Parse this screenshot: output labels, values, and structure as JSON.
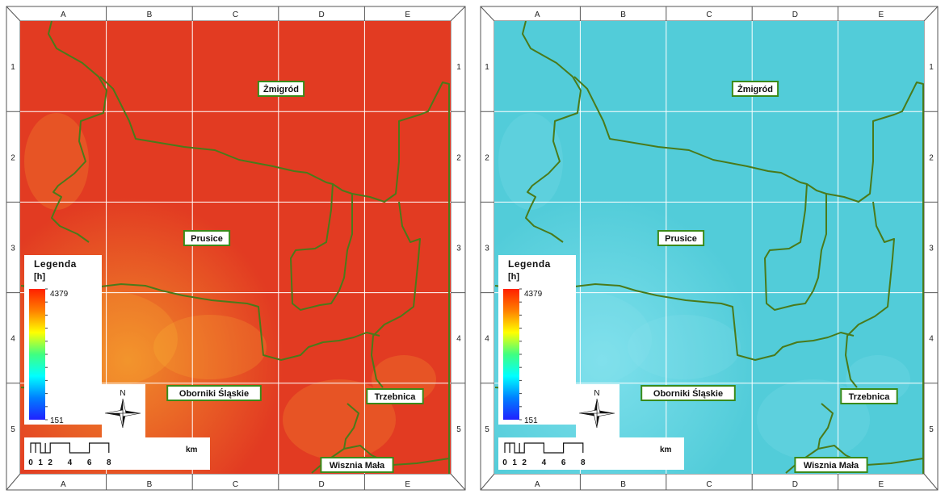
{
  "panels": [
    {
      "id": "left",
      "raster_color": "#e23b22",
      "raster_accent": "#f08a2a",
      "raster_hint": "#ffc83a",
      "col_labels": [
        "A",
        "B",
        "C",
        "D",
        "E"
      ],
      "row_labels": [
        "1",
        "2",
        "3",
        "4",
        "5"
      ],
      "places": [
        "Żmigród",
        "Prusice",
        "Oborniki Śląskie",
        "Trzebnica",
        "Wisznia Mała"
      ],
      "legend": {
        "title": "Legenda",
        "unit": "[h]",
        "max": "4379",
        "min": "151",
        "gradient": [
          "#ff2000",
          "#ff8000",
          "#ffff00",
          "#40ff80",
          "#00ffff",
          "#0080ff",
          "#2020ff"
        ]
      },
      "north_label": "N",
      "scale": {
        "ticks": [
          "0",
          "1",
          "2",
          "4",
          "6",
          "8"
        ],
        "unit": "km"
      }
    },
    {
      "id": "right",
      "raster_color": "#52ccd9",
      "raster_accent": "#7ee0ec",
      "raster_hint": "#8fe6f0",
      "col_labels": [
        "A",
        "B",
        "C",
        "D",
        "E"
      ],
      "row_labels": [
        "1",
        "2",
        "3",
        "4",
        "5"
      ],
      "places": [
        "Żmigród",
        "Prusice",
        "Oborniki Śląskie",
        "Trzebnica",
        "Wisznia Mała"
      ],
      "legend": {
        "title": "Legenda",
        "unit": "[h]",
        "max": "4379",
        "min": "151",
        "gradient": [
          "#ff2000",
          "#ff8000",
          "#ffff00",
          "#40ff80",
          "#00ffff",
          "#0080ff",
          "#2020ff"
        ]
      },
      "north_label": "N",
      "scale": {
        "ticks": [
          "0",
          "1",
          "2",
          "4",
          "6",
          "8"
        ],
        "unit": "km"
      }
    }
  ],
  "boundary_color": "#4a7a1a",
  "grid_color": "#ffffff",
  "label_border_color": "#3a8a1a"
}
